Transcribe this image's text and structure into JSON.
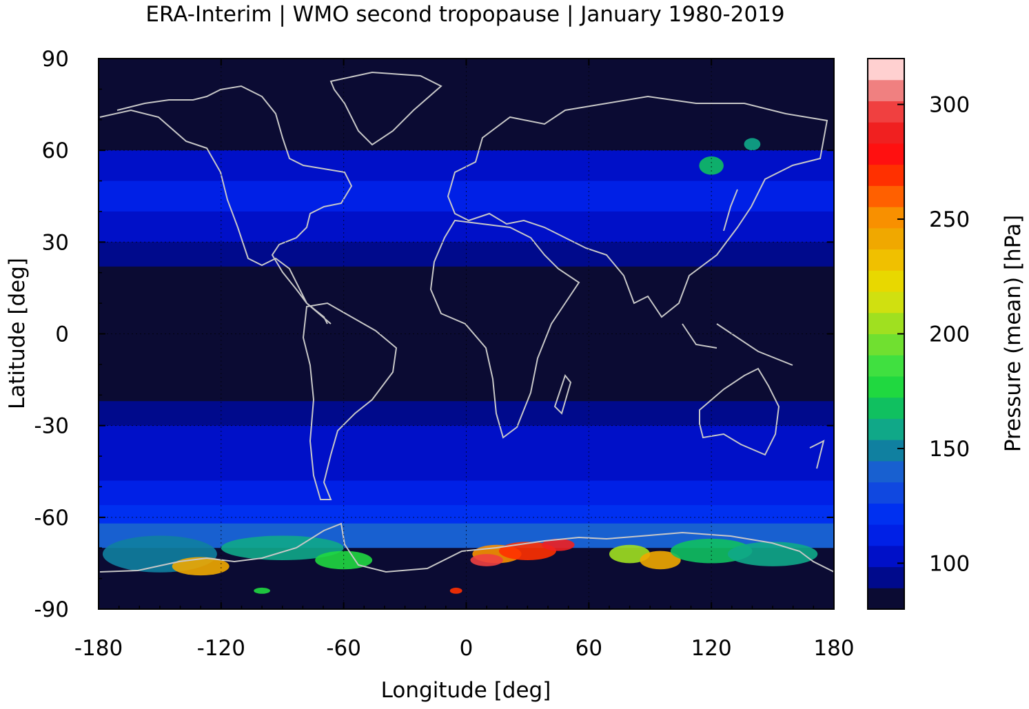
{
  "title": "ERA-Interim | WMO second tropopause | January 1980-2019",
  "chart_data": {
    "type": "heatmap",
    "title": "ERA-Interim | WMO second tropopause | January 1980-2019",
    "xlabel": "Longitude [deg]",
    "ylabel": "Latitude [deg]",
    "xlim": [
      -180,
      180
    ],
    "ylim": [
      -90,
      90
    ],
    "x_ticks": [
      -180,
      -120,
      -60,
      0,
      60,
      120,
      180
    ],
    "y_ticks": [
      90,
      60,
      30,
      0,
      -30,
      -60,
      -90
    ],
    "x_tick_labels": [
      "-180",
      "-120",
      "-60",
      "0",
      "60",
      "120",
      "180"
    ],
    "y_tick_labels": [
      "90",
      "60",
      "30",
      "0",
      "-30",
      "-60",
      "-90"
    ],
    "grid": true,
    "coastlines": true,
    "colorbar": {
      "label": "Pressure (mean) [hPa]",
      "range": [
        80,
        320
      ],
      "ticks": [
        100,
        150,
        200,
        250,
        300
      ],
      "tick_labels": [
        "100",
        "150",
        "200",
        "250",
        "300"
      ],
      "colors": [
        "#0b0b33",
        "#000a8c",
        "#0010c8",
        "#0020e6",
        "#0030f0",
        "#1048e0",
        "#1860d0",
        "#1080a0",
        "#10a888",
        "#10c060",
        "#20d840",
        "#40e040",
        "#70e030",
        "#a0e020",
        "#d0e010",
        "#e8d800",
        "#f0c000",
        "#f0a800",
        "#f89000",
        "#ff6000",
        "#ff3000",
        "#ff1010",
        "#f02020",
        "#f04040",
        "#f08080",
        "#ffd0d0"
      ]
    },
    "field_bands": [
      {
        "lat_range": [
          90,
          60
        ],
        "value": 85
      },
      {
        "lat_range": [
          60,
          50
        ],
        "value": 102
      },
      {
        "lat_range": [
          50,
          40
        ],
        "value": 108
      },
      {
        "lat_range": [
          40,
          30
        ],
        "value": 104
      },
      {
        "lat_range": [
          30,
          22
        ],
        "value": 96
      },
      {
        "lat_range": [
          22,
          -22
        ],
        "value": 85
      },
      {
        "lat_range": [
          -22,
          -30
        ],
        "value": 95
      },
      {
        "lat_range": [
          -30,
          -40
        ],
        "value": 100
      },
      {
        "lat_range": [
          -40,
          -48
        ],
        "value": 106
      },
      {
        "lat_range": [
          -48,
          -56
        ],
        "value": 112
      },
      {
        "lat_range": [
          -56,
          -62
        ],
        "value": 118
      },
      {
        "lat_range": [
          -62,
          -70
        ],
        "value": 140
      },
      {
        "lat_range": [
          -70,
          -90
        ],
        "value": 85
      }
    ]
  }
}
